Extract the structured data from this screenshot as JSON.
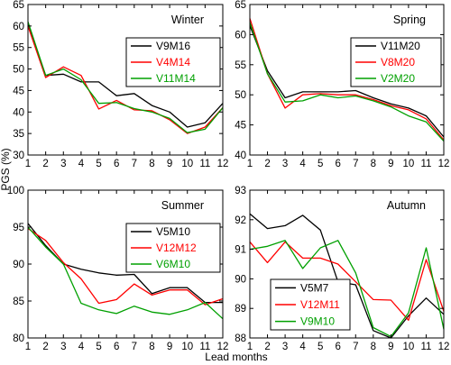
{
  "figure": {
    "ylabel": "PGS (%)",
    "xlabel": "Lead months"
  },
  "chart_data": [
    {
      "type": "line",
      "title": "Winter",
      "x": [
        1,
        2,
        3,
        4,
        5,
        6,
        7,
        8,
        9,
        10,
        11,
        12
      ],
      "xlim": [
        1,
        12
      ],
      "ylim": [
        30,
        65
      ],
      "yticks": [
        30,
        35,
        40,
        45,
        50,
        55,
        60,
        65
      ],
      "legend_placement": "top-right",
      "series": [
        {
          "name": "V9M16",
          "color": "#000000",
          "values": [
            60.5,
            48.5,
            48.8,
            47.0,
            47.0,
            43.8,
            44.3,
            41.5,
            40.0,
            36.5,
            37.5,
            42.0
          ]
        },
        {
          "name": "V4M14",
          "color": "#ff0000",
          "values": [
            60.0,
            48.0,
            50.5,
            48.5,
            40.7,
            42.7,
            40.5,
            40.3,
            38.2,
            35.0,
            36.5,
            41.0
          ]
        },
        {
          "name": "V11M14",
          "color": "#00a000",
          "values": [
            61.0,
            48.5,
            50.0,
            47.5,
            42.0,
            42.2,
            40.8,
            40.0,
            38.5,
            35.2,
            36.0,
            41.0
          ]
        }
      ]
    },
    {
      "type": "line",
      "title": "Spring",
      "x": [
        1,
        2,
        3,
        4,
        5,
        6,
        7,
        8,
        9,
        10,
        11,
        12
      ],
      "xlim": [
        1,
        12
      ],
      "ylim": [
        40,
        65
      ],
      "yticks": [
        40,
        45,
        50,
        55,
        60,
        65
      ],
      "legend_placement": "top-right",
      "series": [
        {
          "name": "V11M20",
          "color": "#000000",
          "values": [
            61.5,
            54.0,
            49.5,
            50.5,
            50.5,
            50.5,
            50.7,
            49.5,
            48.5,
            47.8,
            46.5,
            43.0
          ]
        },
        {
          "name": "V8M20",
          "color": "#ff0000",
          "values": [
            62.7,
            53.5,
            47.8,
            50.0,
            50.2,
            50.0,
            50.0,
            49.2,
            48.2,
            47.5,
            46.0,
            42.5
          ]
        },
        {
          "name": "V2M20",
          "color": "#00a000",
          "values": [
            62.0,
            53.5,
            48.8,
            49.0,
            50.0,
            49.5,
            49.8,
            49.0,
            48.0,
            46.5,
            45.5,
            42.3
          ]
        }
      ]
    },
    {
      "type": "line",
      "title": "Summer",
      "x": [
        1,
        2,
        3,
        4,
        5,
        6,
        7,
        8,
        9,
        10,
        11,
        12
      ],
      "xlim": [
        1,
        12
      ],
      "ylim": [
        80,
        100
      ],
      "yticks": [
        80,
        85,
        90,
        95,
        100
      ],
      "legend_placement": "top-right",
      "series": [
        {
          "name": "V5M10",
          "color": "#000000",
          "values": [
            95.5,
            92.5,
            90.0,
            89.3,
            88.8,
            88.5,
            88.6,
            86.0,
            86.8,
            86.8,
            84.8,
            84.8
          ]
        },
        {
          "name": "V12M12",
          "color": "#ff0000",
          "values": [
            94.8,
            93.2,
            90.2,
            88.0,
            84.7,
            85.2,
            87.3,
            85.8,
            86.5,
            86.5,
            84.5,
            85.3
          ]
        },
        {
          "name": "V6M10",
          "color": "#00a000",
          "values": [
            95.0,
            92.3,
            90.0,
            84.7,
            83.8,
            83.3,
            84.3,
            83.5,
            83.2,
            83.8,
            84.8,
            82.6
          ]
        }
      ]
    },
    {
      "type": "line",
      "title": "Autumn",
      "x": [
        1,
        2,
        3,
        4,
        5,
        6,
        7,
        8,
        9,
        10,
        11,
        12
      ],
      "xlim": [
        1,
        12
      ],
      "ylim": [
        88,
        93
      ],
      "yticks": [
        88,
        89,
        90,
        91,
        92,
        93
      ],
      "legend_placement": "bottom-left",
      "series": [
        {
          "name": "V5M7",
          "color": "#000000",
          "values": [
            92.2,
            91.7,
            91.8,
            92.15,
            91.65,
            89.9,
            89.8,
            88.25,
            88.0,
            88.75,
            89.35,
            88.8
          ]
        },
        {
          "name": "V12M11",
          "color": "#ff0000",
          "values": [
            91.25,
            90.55,
            91.25,
            90.7,
            90.7,
            90.5,
            89.9,
            89.3,
            89.28,
            88.6,
            90.65,
            88.9
          ]
        },
        {
          "name": "V9M10",
          "color": "#00a000",
          "values": [
            91.0,
            91.1,
            91.3,
            90.35,
            91.05,
            91.3,
            90.2,
            88.35,
            88.05,
            88.85,
            91.05,
            88.3
          ]
        }
      ]
    }
  ]
}
